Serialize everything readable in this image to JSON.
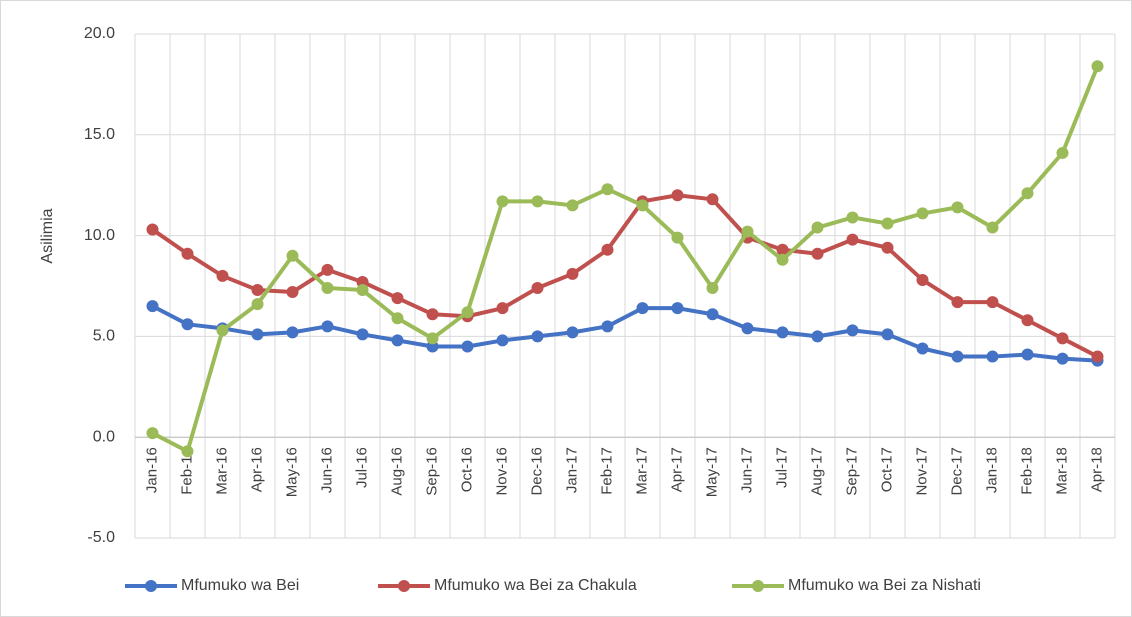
{
  "chart_data": {
    "type": "line",
    "y_label": "Asilimia",
    "categories": [
      "Jan-16",
      "Feb-16",
      "Mar-16",
      "Apr-16",
      "May-16",
      "Jun-16",
      "Jul-16",
      "Aug-16",
      "Sep-16",
      "Oct-16",
      "Nov-16",
      "Dec-16",
      "Jan-17",
      "Feb-17",
      "Mar-17",
      "Apr-17",
      "May-17",
      "Jun-17",
      "Jul-17",
      "Aug-17",
      "Sep-17",
      "Oct-17",
      "Nov-17",
      "Dec-17",
      "Jan-18",
      "Feb-18",
      "Mar-18",
      "Apr-18"
    ],
    "series": [
      {
        "name": "Mfumuko wa Bei",
        "color": "#4472c4",
        "values": [
          6.5,
          5.6,
          5.4,
          5.1,
          5.2,
          5.5,
          5.1,
          4.8,
          4.5,
          4.5,
          4.8,
          5.0,
          5.2,
          5.5,
          6.4,
          6.4,
          6.1,
          5.4,
          5.2,
          5.0,
          5.3,
          5.1,
          4.4,
          4.0,
          4.0,
          4.1,
          3.9,
          3.8
        ]
      },
      {
        "name": "Mfumuko wa Bei za Chakula",
        "color": "#c0504d",
        "values": [
          10.3,
          9.1,
          8.0,
          7.3,
          7.2,
          8.3,
          7.7,
          6.9,
          6.1,
          6.0,
          6.4,
          7.4,
          8.1,
          9.3,
          11.7,
          12.0,
          11.8,
          9.9,
          9.3,
          9.1,
          9.8,
          9.4,
          7.8,
          6.7,
          6.7,
          5.8,
          4.9,
          4.0
        ]
      },
      {
        "name": "Mfumuko wa Bei za Nishati",
        "color": "#9bbb59",
        "values": [
          0.2,
          -0.7,
          5.3,
          6.6,
          9.0,
          7.4,
          7.3,
          5.9,
          4.9,
          6.2,
          11.7,
          11.7,
          11.5,
          12.3,
          11.5,
          9.9,
          7.4,
          10.2,
          8.8,
          10.4,
          10.9,
          10.6,
          11.1,
          11.4,
          10.4,
          12.1,
          14.1,
          18.4
        ]
      }
    ],
    "ylim": [
      -5,
      20
    ],
    "yticks": [
      {
        "value": -5,
        "label": "-5.0"
      },
      {
        "value": 0,
        "label": "0.0"
      },
      {
        "value": 5,
        "label": "5.0"
      },
      {
        "value": 10,
        "label": "10.0"
      },
      {
        "value": 15,
        "label": "15.0"
      },
      {
        "value": 20,
        "label": "20.0"
      }
    ],
    "grid": true,
    "legend": "bottom"
  }
}
